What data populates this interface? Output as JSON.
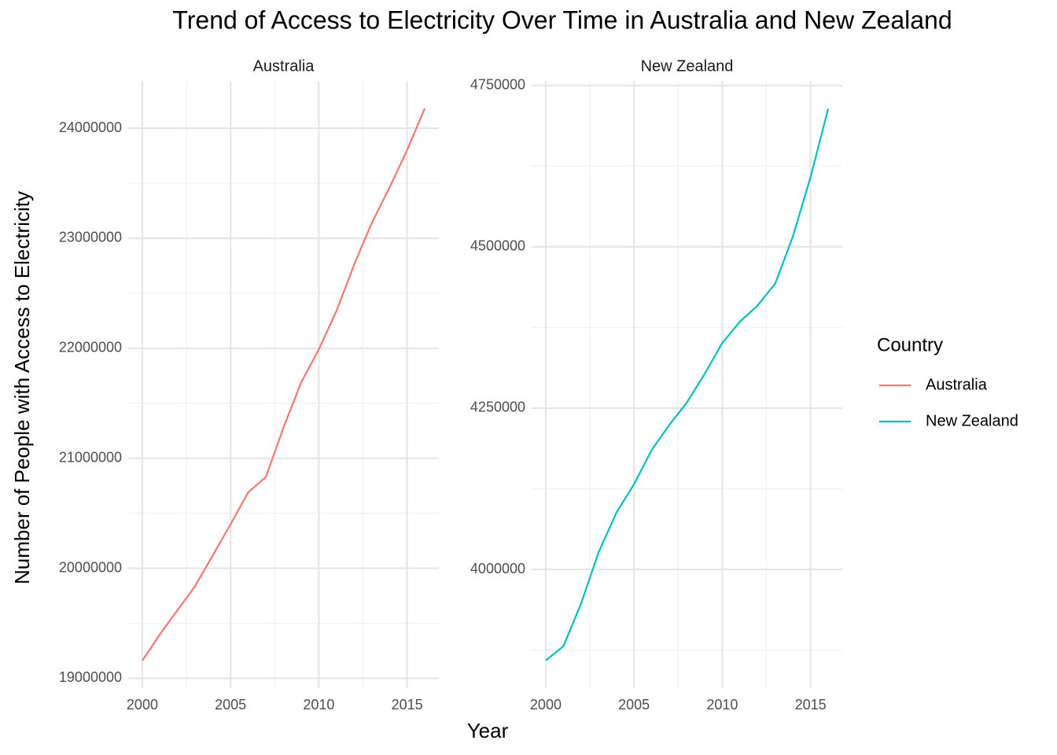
{
  "title": "Trend of Access to Electricity Over Time in Australia and New Zealand",
  "x_label": "Year",
  "y_label": "Number of People with Access to Electricity",
  "legend_title": "Country",
  "chart_data": [
    {
      "type": "line",
      "title": "Australia",
      "x": [
        2000,
        2001,
        2002,
        2003,
        2004,
        2005,
        2006,
        2007,
        2008,
        2009,
        2010,
        2011,
        2012,
        2013,
        2014,
        2015,
        2016
      ],
      "series": [
        {
          "name": "Australia",
          "color": "#F8766D",
          "values": [
            19160000,
            19400000,
            19620000,
            19840000,
            20120000,
            20400000,
            20690000,
            20830000,
            21280000,
            21690000,
            21990000,
            22340000,
            22760000,
            23140000,
            23460000,
            23800000,
            24180000
          ]
        }
      ],
      "xlim": [
        1999.2,
        2016.8
      ],
      "xticks": [
        2000,
        2005,
        2010,
        2015
      ],
      "ylim": [
        18910000,
        24430000
      ],
      "yticks": [
        19000000,
        20000000,
        21000000,
        22000000,
        23000000,
        24000000
      ],
      "grid": true
    },
    {
      "type": "line",
      "title": "New Zealand",
      "x": [
        2000,
        2001,
        2002,
        2003,
        2004,
        2005,
        2006,
        2007,
        2008,
        2009,
        2010,
        2011,
        2012,
        2013,
        2014,
        2015,
        2016
      ],
      "series": [
        {
          "name": "New Zealand",
          "color": "#00BFC4",
          "values": [
            3859000,
            3881000,
            3947000,
            4027000,
            4088000,
            4132000,
            4185000,
            4224000,
            4259000,
            4303000,
            4351000,
            4384000,
            4409000,
            4443000,
            4516000,
            4608000,
            4714000
          ]
        }
      ],
      "xlim": [
        1999.2,
        2016.8
      ],
      "xticks": [
        2000,
        2005,
        2010,
        2015
      ],
      "ylim": [
        3816000,
        4757000
      ],
      "yticks": [
        4000000,
        4250000,
        4500000,
        4750000
      ],
      "grid": true
    }
  ]
}
